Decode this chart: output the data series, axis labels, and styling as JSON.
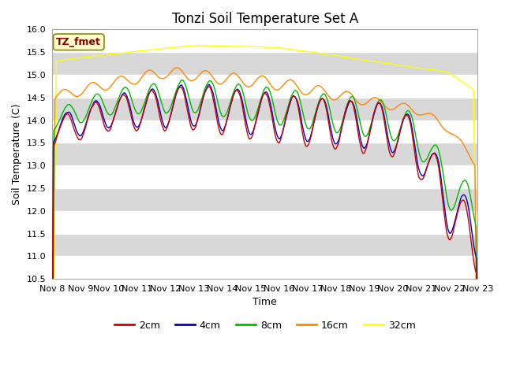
{
  "title": "Tonzi Soil Temperature Set A",
  "xlabel": "Time",
  "ylabel": "Soil Temperature (C)",
  "ylim": [
    10.5,
    16.0
  ],
  "yticks": [
    10.5,
    11.0,
    11.5,
    12.0,
    12.5,
    13.0,
    13.5,
    14.0,
    14.5,
    15.0,
    15.5,
    16.0
  ],
  "xtick_labels": [
    "Nov 8",
    "Nov 9",
    "Nov 10",
    "Nov 11",
    "Nov 12",
    "Nov 13",
    "Nov 14",
    "Nov 15",
    "Nov 16",
    "Nov 17",
    "Nov 18",
    "Nov 19",
    "Nov 20",
    "Nov 21",
    "Nov 22",
    "Nov 23"
  ],
  "legend_label": "TZ_fmet",
  "series_labels": [
    "2cm",
    "4cm",
    "8cm",
    "16cm",
    "32cm"
  ],
  "series_colors": [
    "#cc0000",
    "#0000cc",
    "#00bb00",
    "#ff8800",
    "#ffff00"
  ],
  "fig_bg_color": "#ffffff",
  "plot_bg_color": "#d8d8d8",
  "stripe_color": "#ffffff",
  "title_fontsize": 12,
  "axis_fontsize": 9,
  "tick_fontsize": 8,
  "legend_box_facecolor": "#ffffcc",
  "legend_box_edgecolor": "#888800",
  "legend_text_color": "#880000"
}
